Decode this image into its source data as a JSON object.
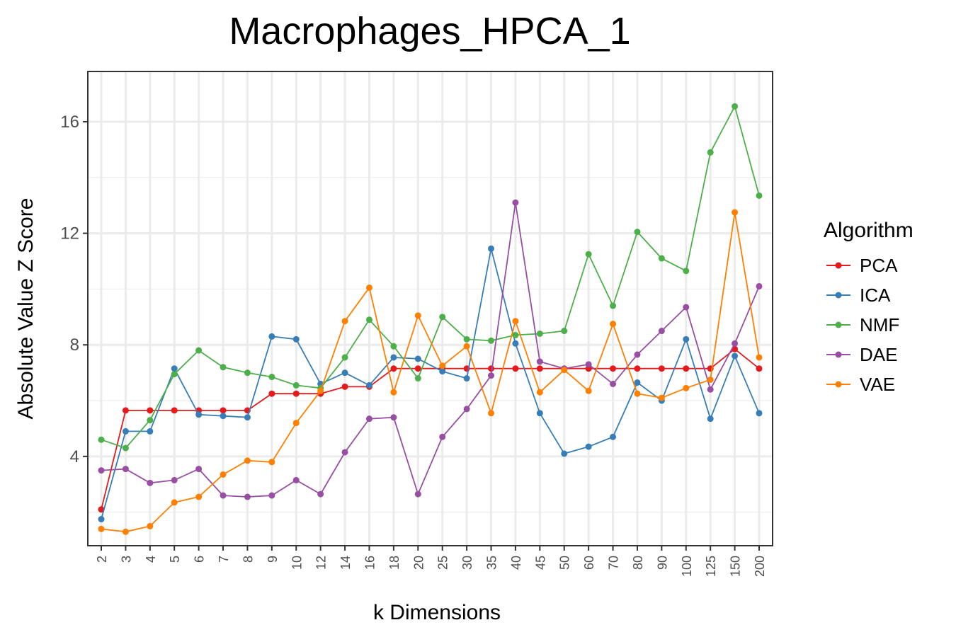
{
  "chart_data": {
    "type": "line",
    "title": "Macrophages_HPCA_1",
    "xlabel": "k Dimensions",
    "ylabel": "Absolute Value Z Score",
    "ylim": [
      0.8,
      17.8
    ],
    "yticks": [
      4,
      8,
      12,
      16
    ],
    "grid": true,
    "legend_title": "Algorithm",
    "legend_position": "right",
    "categories": [
      "2",
      "3",
      "4",
      "5",
      "6",
      "7",
      "8",
      "9",
      "10",
      "12",
      "14",
      "16",
      "18",
      "20",
      "25",
      "30",
      "35",
      "40",
      "45",
      "50",
      "60",
      "70",
      "80",
      "90",
      "100",
      "125",
      "150",
      "200"
    ],
    "series": [
      {
        "name": "PCA",
        "color": "#e41a1c",
        "values": [
          2.1,
          5.65,
          5.65,
          5.65,
          5.65,
          5.65,
          5.65,
          6.25,
          6.25,
          6.25,
          6.5,
          6.5,
          7.15,
          7.15,
          7.15,
          7.15,
          7.15,
          7.15,
          7.15,
          7.15,
          7.15,
          7.15,
          7.15,
          7.15,
          7.15,
          7.15,
          7.85,
          7.15
        ]
      },
      {
        "name": "ICA",
        "color": "#377eb8",
        "values": [
          1.75,
          4.9,
          4.9,
          7.15,
          5.5,
          5.45,
          5.4,
          8.3,
          8.2,
          6.6,
          7.0,
          6.55,
          7.55,
          7.5,
          7.05,
          6.8,
          11.45,
          8.05,
          5.55,
          4.1,
          4.35,
          4.7,
          6.65,
          6.0,
          8.2,
          5.35,
          7.6,
          5.55
        ]
      },
      {
        "name": "NMF",
        "color": "#4daf4a",
        "values": [
          4.6,
          4.3,
          5.3,
          6.95,
          7.8,
          7.2,
          7.0,
          6.85,
          6.55,
          6.45,
          7.55,
          8.9,
          7.95,
          6.8,
          9.0,
          8.2,
          8.15,
          8.35,
          8.4,
          8.5,
          11.25,
          9.4,
          12.05,
          11.1,
          10.65,
          14.9,
          16.55,
          13.35
        ]
      },
      {
        "name": "DAE",
        "color": "#984ea3",
        "values": [
          3.5,
          3.55,
          3.05,
          3.15,
          3.55,
          2.6,
          2.55,
          2.6,
          3.15,
          2.65,
          4.15,
          5.35,
          5.4,
          2.65,
          4.7,
          5.7,
          6.9,
          13.1,
          7.4,
          7.15,
          7.3,
          6.6,
          7.65,
          8.5,
          9.35,
          6.4,
          8.05,
          10.1
        ]
      },
      {
        "name": "VAE",
        "color": "#ff7f00",
        "values": [
          1.4,
          1.3,
          1.5,
          2.35,
          2.55,
          3.35,
          3.85,
          3.8,
          5.2,
          6.35,
          8.85,
          10.05,
          6.3,
          9.05,
          7.25,
          7.95,
          5.55,
          8.85,
          6.3,
          7.1,
          6.35,
          8.75,
          6.25,
          6.1,
          6.45,
          6.75,
          12.75,
          7.55
        ]
      }
    ]
  }
}
